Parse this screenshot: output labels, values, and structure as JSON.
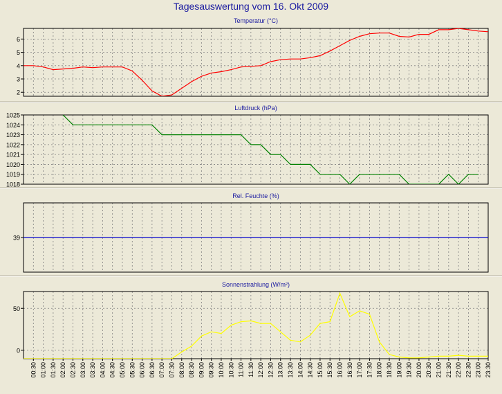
{
  "page_title": "Tagesauswertung vom 16. Okt 2009",
  "x_tick_labels": [
    "00:30",
    "01:00",
    "01:30",
    "02:00",
    "02:30",
    "03:00",
    "03:30",
    "04:00",
    "04:30",
    "05:00",
    "05:30",
    "06:00",
    "06:30",
    "07:00",
    "07:30",
    "08:00",
    "08:30",
    "09:00",
    "09:30",
    "10:00",
    "10:30",
    "11:00",
    "11:30",
    "12:00",
    "12:30",
    "13:00",
    "13:30",
    "14:00",
    "14:30",
    "15:00",
    "15:30",
    "16:00",
    "16:30",
    "17:00",
    "17:30",
    "18:00",
    "18:30",
    "19:00",
    "19:30",
    "20:00",
    "20:30",
    "21:00",
    "21:30",
    "22:00",
    "22:30",
    "23:00",
    "23:30"
  ],
  "colors": {
    "background": "#ece9d8",
    "plot_bg": "#ece9d8",
    "title": "#1a1aa0",
    "subtitle": "#1a1aa0",
    "axis": "#000000",
    "grid": "#808080",
    "temperature": "#ff0000",
    "pressure": "#008000",
    "humidity": "#0000cc",
    "radiation": "#ffff00"
  },
  "chart_data": [
    {
      "type": "line",
      "title": "Temperatur (°C)",
      "ylim": [
        1.7,
        6.8
      ],
      "yticks": [
        2,
        3,
        4,
        5,
        6
      ],
      "grid": true,
      "series": [
        {
          "x": [
            0,
            0.5,
            1,
            1.5,
            2,
            2.5,
            3,
            3.5,
            4,
            4.5,
            5,
            5.5,
            6,
            6.5,
            7,
            7.5,
            8,
            8.5,
            9,
            9.5,
            10,
            10.5,
            11,
            11.5,
            12,
            12.5,
            13,
            13.5,
            14,
            14.5,
            15,
            15.5,
            16,
            16.5,
            17,
            17.5,
            18,
            18.5,
            19,
            19.5,
            20,
            20.5,
            21,
            21.5,
            22,
            22.5,
            23,
            23.5
          ],
          "values": [
            4.0,
            4.0,
            3.9,
            3.7,
            3.75,
            3.8,
            3.9,
            3.85,
            3.9,
            3.9,
            3.9,
            3.6,
            2.9,
            2.1,
            1.7,
            1.8,
            2.3,
            2.8,
            3.2,
            3.45,
            3.55,
            3.7,
            3.9,
            3.95,
            4.0,
            4.3,
            4.45,
            4.5,
            4.5,
            4.6,
            4.75,
            5.1,
            5.5,
            5.9,
            6.2,
            6.4,
            6.45,
            6.45,
            6.2,
            6.15,
            6.35,
            6.35,
            6.7,
            6.7,
            6.8,
            6.7,
            6.6,
            6.55
          ]
        }
      ]
    },
    {
      "type": "line",
      "title": "Luftdruck (hPa)",
      "ylim": [
        1018,
        1025
      ],
      "yticks": [
        1018,
        1019,
        1020,
        1021,
        1022,
        1023,
        1024,
        1025
      ],
      "grid": true,
      "series": [
        {
          "x": [
            2.0,
            2.5,
            6.5,
            7.0,
            11.0,
            11.5,
            12.0,
            12.5,
            13.0,
            13.5,
            14.5,
            15.0,
            16.0,
            16.5,
            17.0,
            17.5,
            19.0,
            19.5,
            21.0,
            21.5,
            22.0,
            22.5,
            23.0
          ],
          "values": [
            1025,
            1024,
            1024,
            1023,
            1023,
            1022,
            1022,
            1021,
            1021,
            1020,
            1020,
            1019,
            1019,
            1018,
            1019,
            1019,
            1019,
            1018,
            1018,
            1019,
            1018,
            1019,
            1019
          ]
        }
      ]
    },
    {
      "type": "line",
      "title": "Rel. Feuchte (%)",
      "ylim": [
        34,
        44
      ],
      "yticks": [
        39
      ],
      "grid": true,
      "series": [
        {
          "x": [
            0,
            23.5
          ],
          "values": [
            39,
            39
          ]
        }
      ]
    },
    {
      "type": "line",
      "title": "Sonnenstrahlung (W/m²)",
      "ylim": [
        -10,
        70
      ],
      "yticks": [
        0,
        50
      ],
      "grid": true,
      "series": [
        {
          "x": [
            0,
            0.5,
            1,
            1.5,
            2,
            2.5,
            3,
            3.5,
            4,
            4.5,
            5,
            5.5,
            6,
            6.5,
            7,
            7.5,
            8,
            8.5,
            9,
            9.5,
            10,
            10.5,
            11,
            11.5,
            12,
            12.5,
            13,
            13.5,
            14,
            14.5,
            15,
            15.5,
            16,
            16.5,
            17,
            17.5,
            18,
            18.5,
            19,
            19.5,
            20,
            20.5,
            21,
            21.5,
            22,
            22.5,
            23,
            23.5
          ],
          "values": [
            -10,
            -10,
            -10,
            -10,
            -10,
            -10,
            -10,
            -10,
            -10,
            -10,
            -10,
            -10,
            -10,
            -10,
            -10,
            -10,
            -2,
            5,
            17,
            22,
            20,
            30,
            34,
            35,
            32,
            32,
            22,
            12,
            10,
            18,
            32,
            34,
            68,
            40,
            47,
            43,
            10,
            -5,
            -8,
            -9,
            -9,
            -8,
            -7,
            -7,
            -6,
            -7,
            -7,
            -7
          ]
        }
      ]
    }
  ]
}
